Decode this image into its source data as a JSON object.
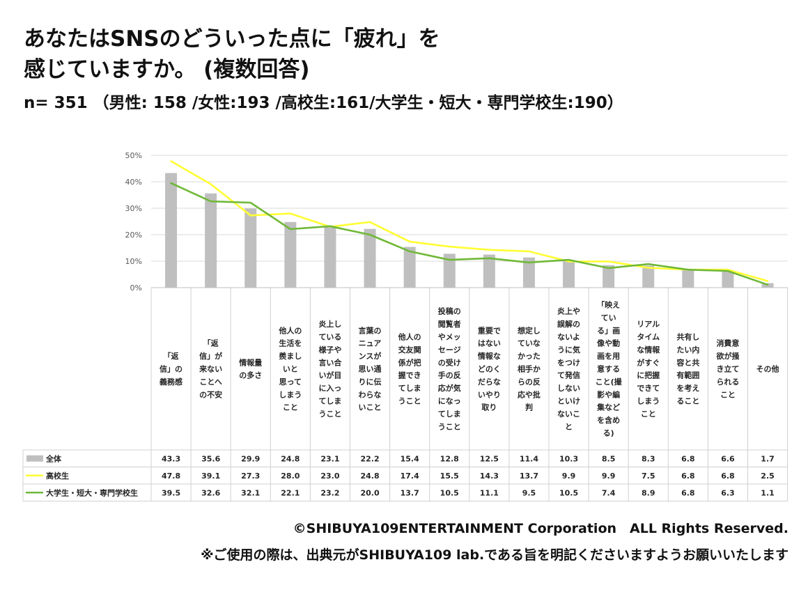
{
  "header": {
    "title_line1": "あなたはSNSのどういった点に「疲れ」を",
    "title_line2": "感じていますか。 (複数回答)",
    "sample": "n= 351 （男性: 158 /女性:193 /高校生:161/大学生・短大・専門学校生:190）"
  },
  "footer": {
    "copyright": "©SHIBUYA109ENTERTAINMENT Corporation　ALL Rights Reserved.",
    "note": "※ご使用の際は、出典元がSHIBUYA109 lab.である旨を明記くださいますようお願いいたします"
  },
  "chart_data": {
    "type": "bar",
    "title": "",
    "xlabel": "",
    "ylabel": "",
    "ylim": [
      0,
      50
    ],
    "yticks": [
      "0%",
      "10%",
      "20%",
      "30%",
      "40%",
      "50%"
    ],
    "grid": true,
    "categories": [
      "「返信」の義務感",
      "「返信」が来ないことへの不安",
      "情報量の多さ",
      "他人の生活を羨ましいと思ってしまうこと",
      "炎上している様子や言い合いが目に入ってしまうこと",
      "言葉のニュアンスが思い通りに伝わらないこと",
      "他人の交友関係が把握できてしまうこと",
      "投稿の閲覧者やメッセージの受け手の反応が気になってしまうこと",
      "重要ではない情報などのくだらないやり取り",
      "想定していなかった相手からの反応や批判",
      "炎上や誤解のないように気をつけて発信しないといけないこと",
      "「映えている」画像や動画を用意すること(撮影や編集などを含める)",
      "リアルタイムな情報がすぐに把握できてしまうこと",
      "共有したい内容と共有範囲を考えること",
      "消費意欲が掻き立てられること",
      "その他"
    ],
    "category_lines": [
      [
        "「返",
        "信」の",
        "義務感"
      ],
      [
        "「返",
        "信」が",
        "来ない",
        "ことへ",
        "の不安"
      ],
      [
        "情報量",
        "の多さ"
      ],
      [
        "他人の",
        "生活を",
        "羨まし",
        "いと",
        "思って",
        "しまう",
        "こと"
      ],
      [
        "炎上し",
        "ている",
        "様子や",
        "言い合",
        "いが目",
        "に入っ",
        "てしま",
        "うこと"
      ],
      [
        "言葉の",
        "ニュア",
        "ンスが",
        "思い通",
        "りに伝",
        "わらな",
        "いこと"
      ],
      [
        "他人の",
        "交友関",
        "係が把",
        "握でき",
        "てしま",
        "うこと"
      ],
      [
        "投稿の",
        "閲覧者",
        "やメッ",
        "セージ",
        "の受け",
        "手の反",
        "応が気",
        "になっ",
        "てしま",
        "うこと"
      ],
      [
        "重要で",
        "はない",
        "情報な",
        "どのく",
        "だらな",
        "いやり",
        "取り"
      ],
      [
        "想定し",
        "ていな",
        "かった",
        "相手か",
        "らの反",
        "応や批",
        "判"
      ],
      [
        "炎上や",
        "誤解の",
        "ないよ",
        "うに気",
        "をつけ",
        "て発信",
        "しない",
        "といけ",
        "ないこ",
        "と"
      ],
      [
        "「映え",
        "てい",
        "る」画",
        "像や動",
        "画を用",
        "意する",
        "こと(撮",
        "影や編",
        "集など",
        "を含め",
        "る)"
      ],
      [
        "リアル",
        "タイム",
        "な情報",
        "がすぐ",
        "に把握",
        "できて",
        "しまう",
        "こと"
      ],
      [
        "共有し",
        "たい内",
        "容と共",
        "有範囲",
        "を考え",
        "ること"
      ],
      [
        "消費意",
        "欲が掻",
        "き立て",
        "られる",
        "こと"
      ],
      [
        "その他"
      ]
    ],
    "series": [
      {
        "name": "全体",
        "kind": "bar",
        "color": "#bfbfbf",
        "values": [
          43.3,
          35.6,
          29.9,
          24.8,
          23.1,
          22.2,
          15.4,
          12.8,
          12.5,
          11.4,
          10.3,
          8.5,
          8.3,
          6.8,
          6.6,
          1.7
        ],
        "labels": [
          "43.3",
          "35.6",
          "29.9",
          "24.8",
          "23.1",
          "22.2",
          "15.4",
          "12.8",
          "12.5",
          "11.4",
          "10.3",
          "8.5",
          "8.3",
          "6.8",
          "6.6",
          "1.7"
        ]
      },
      {
        "name": "高校生",
        "kind": "line",
        "color": "#ffff33",
        "values": [
          47.8,
          39.1,
          27.3,
          28.0,
          23.0,
          24.8,
          17.4,
          15.5,
          14.3,
          13.7,
          9.9,
          9.9,
          7.5,
          6.8,
          6.8,
          2.5
        ],
        "labels": [
          "47.8",
          "39.1",
          "27.3",
          "28.0",
          "23.0",
          "24.8",
          "17.4",
          "15.5",
          "14.3",
          "13.7",
          "9.9",
          "9.9",
          "7.5",
          "6.8",
          "6.8",
          "2.5"
        ]
      },
      {
        "name": "大学生・短大・専門学校生",
        "kind": "line",
        "color": "#70b838",
        "values": [
          39.5,
          32.6,
          32.1,
          22.1,
          23.2,
          20.0,
          13.7,
          10.5,
          11.1,
          9.5,
          10.5,
          7.4,
          8.9,
          6.8,
          6.3,
          1.1
        ],
        "labels": [
          "39.5",
          "32.6",
          "32.1",
          "22.1",
          "23.2",
          "20.0",
          "13.7",
          "10.5",
          "11.1",
          "9.5",
          "10.5",
          "7.4",
          "8.9",
          "6.8",
          "6.3",
          "1.1"
        ]
      }
    ]
  }
}
